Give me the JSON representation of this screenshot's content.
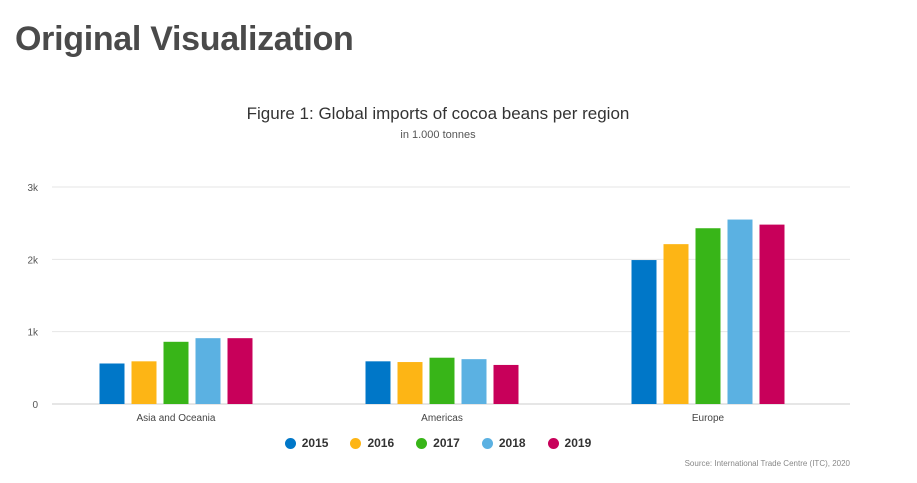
{
  "page": {
    "heading": "Original Visualization"
  },
  "chart_data": {
    "type": "bar",
    "title": "Figure 1: Global imports of cocoa beans per region",
    "subtitle": "in 1.000 tonnes",
    "categories": [
      "Asia and Oceania",
      "Americas",
      "Europe"
    ],
    "series": [
      {
        "name": "2015",
        "color": "#0077c8",
        "values": [
          560,
          590,
          1990
        ]
      },
      {
        "name": "2016",
        "color": "#fdb515",
        "values": [
          590,
          580,
          2210
        ]
      },
      {
        "name": "2017",
        "color": "#38b518",
        "values": [
          860,
          640,
          2430
        ]
      },
      {
        "name": "2018",
        "color": "#5bb1e2",
        "values": [
          910,
          620,
          2550
        ]
      },
      {
        "name": "2019",
        "color": "#c8005a",
        "values": [
          910,
          540,
          2480
        ]
      }
    ],
    "ylim": [
      0,
      3000
    ],
    "yticks": [
      0,
      1000,
      2000,
      3000
    ],
    "ytick_labels": [
      "0",
      "1k",
      "2k",
      "3k"
    ],
    "grid": true,
    "legend_position": "bottom-center",
    "source": "Source: International Trade Centre (ITC), 2020"
  }
}
